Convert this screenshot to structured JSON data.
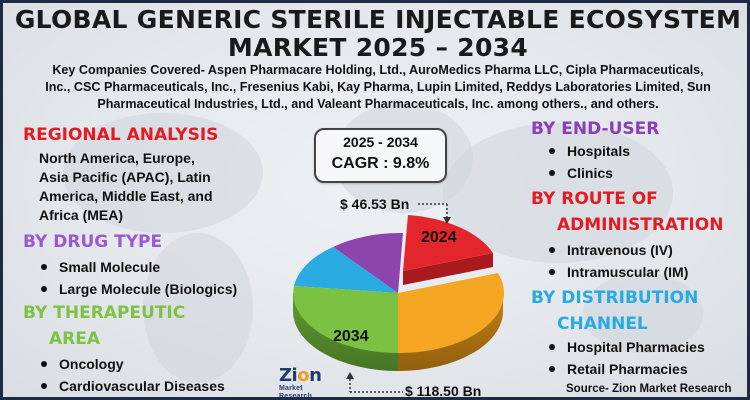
{
  "title": "GLOBAL GENERIC STERILE INJECTABLE ECOSYSTEM MARKET 2025 – 2034",
  "title_line1": "GLOBAL GENERIC STERILE INJECTABLE ECOSYSTEM",
  "title_line2": "MARKET 2025 – 2034",
  "companies_line1": "Key Companies Covered- Aspen Pharmacare Holding, Ltd., AuroMedics Pharma LLC, Cipla Pharmaceuticals,",
  "companies_line2": "Inc., CSC Pharmaceuticals, Inc., Fresenius Kabi, Kay Pharma, Lupin Limited, Reddys Laboratories Limited, Sun",
  "companies_line3": "Pharmaceutical Industries, Ltd., and Valeant Pharmaceuticals, Inc. among others., and others.",
  "regional": {
    "heading": "REGIONAL ANALYSIS",
    "line1": "North America, Europe,",
    "line2": "Asia Pacific (APAC), Latin",
    "line3": "America, Middle East, and",
    "line4": "Africa (MEA)"
  },
  "drug_type": {
    "heading": "BY DRUG TYPE",
    "items": [
      "Small Molecule",
      "Large Molecule (Biologics)"
    ]
  },
  "therapeutic": {
    "heading_line1": "BY THERAPEUTIC",
    "heading_line2": "AREA",
    "items": [
      "Oncology",
      "Cardiovascular Diseases"
    ]
  },
  "end_user": {
    "heading": "BY END-USER",
    "items": [
      "Hospitals",
      "Clinics"
    ]
  },
  "route": {
    "heading_line1": "BY ROUTE OF",
    "heading_line2": "ADMINISTRATION",
    "items": [
      "Intravenous (IV)",
      "Intramuscular (IM)"
    ]
  },
  "distribution": {
    "heading_line1": "BY DISTRIBUTION",
    "heading_line2": "CHANNEL",
    "items": [
      "Hospital Pharmacies",
      "Retail Pharmacies"
    ]
  },
  "cagr": {
    "years": "2025 - 2034",
    "value": "CAGR : 9.8%"
  },
  "chart": {
    "label_2024": "2024",
    "label_2034": "2034",
    "value_2024": "$ 46.53 Bn",
    "value_2034": "$ 118.50 Bn"
  },
  "logo": {
    "main_pre": "Zi",
    "main_o": "o",
    "main_post": "n",
    "sub": "Market Research"
  },
  "source": "Source- Zion Market Research",
  "colors": {
    "title": "#1a1a1a",
    "regional_heading": "#e31b23",
    "drug_heading": "#9b59d0",
    "therapeutic_heading": "#7dc242",
    "end_user_heading": "#8a3fb8",
    "route_heading": "#e31b23",
    "distribution_heading": "#29abe2",
    "slice_red": "#e3262b",
    "slice_orange": "#f5a623",
    "slice_green": "#7cc242",
    "slice_blue": "#29abe2",
    "slice_purple": "#8e44ad"
  }
}
